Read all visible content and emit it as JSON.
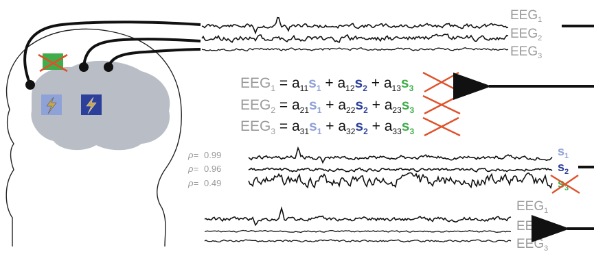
{
  "raw_eeg_labels": [
    {
      "base": "EEG",
      "sub": "1"
    },
    {
      "base": "EEG",
      "sub": "2"
    },
    {
      "base": "EEG",
      "sub": "3"
    }
  ],
  "equations": [
    {
      "lhs": "EEG",
      "lhs_sub": "1",
      "eq": " = ",
      "terms": [
        {
          "coef": "a",
          "coef_sub": "11",
          "src": "s",
          "src_sub": "1"
        },
        {
          "coef": "a",
          "coef_sub": "12",
          "src": "s",
          "src_sub": "2"
        },
        {
          "coef": "a",
          "coef_sub": "13",
          "src": "s",
          "src_sub": "3"
        }
      ]
    },
    {
      "lhs": "EEG",
      "lhs_sub": "2",
      "eq": " = ",
      "terms": [
        {
          "coef": "a",
          "coef_sub": "21",
          "src": "s",
          "src_sub": "1"
        },
        {
          "coef": "a",
          "coef_sub": "22",
          "src": "s",
          "src_sub": "2"
        },
        {
          "coef": "a",
          "coef_sub": "23",
          "src": "s",
          "src_sub": "3"
        }
      ]
    },
    {
      "lhs": "EEG",
      "lhs_sub": "3",
      "eq": " = ",
      "terms": [
        {
          "coef": "a",
          "coef_sub": "31",
          "src": "s",
          "src_sub": "1"
        },
        {
          "coef": "a",
          "coef_sub": "32",
          "src": "s",
          "src_sub": "2"
        },
        {
          "coef": "a",
          "coef_sub": "33",
          "src": "s",
          "src_sub": "3"
        }
      ]
    }
  ],
  "plus": "+",
  "sources": [
    {
      "rho_label": "ρ=",
      "rho": "0.99",
      "name": "s",
      "sub": "1",
      "color": "#8fa2d8"
    },
    {
      "rho_label": "ρ=",
      "rho": "0.96",
      "name": "s",
      "sub": "2",
      "color": "#2c3f9a"
    },
    {
      "rho_label": "ρ=",
      "rho": "0.49",
      "name": "s",
      "sub": "3",
      "color": "#3fae4a"
    }
  ],
  "clean_eeg_labels": [
    {
      "base": "EEG",
      "sub": "1"
    },
    {
      "base": "EEG",
      "sub": "2"
    },
    {
      "base": "EEG",
      "sub": "3"
    }
  ],
  "colors": {
    "trace": "#111111",
    "label_gray": "#9a9a9a",
    "brain": "#b9bdc6",
    "cross_red": "#e0502a",
    "source1_box": "#8fa2d8",
    "source2_box": "#2c3f9a",
    "source3_box": "#3fae4a"
  },
  "icons": [
    "head-outline",
    "brain-shape",
    "electrode",
    "lightning-icon",
    "cross-out-icon",
    "arrow-left-icon"
  ]
}
